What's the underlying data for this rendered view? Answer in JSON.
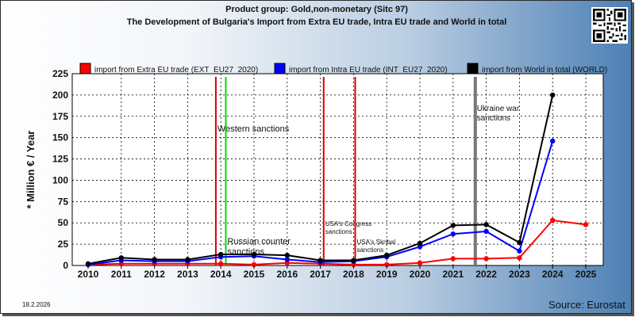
{
  "page": {
    "title_line1": "Product group: Gold,non-monetary (Sitc 97)",
    "title_line2": "The Development of Bulgaria's Import from Extra EU trade, Intra EU trade and World in total",
    "date": "18.2.2026",
    "source": "Source: Eurostat"
  },
  "colors": {
    "extra_eu": "#ff0000",
    "intra_eu": "#0000ff",
    "world": "#000000",
    "sanction_red": "#dd0000",
    "sanction_green": "#00dd00",
    "sanction_gray": "#777777"
  },
  "chart_data": {
    "type": "line",
    "ylabel": "* Million € / Year",
    "xlabel": "",
    "ylim": [
      0,
      225
    ],
    "yticks": [
      0,
      25,
      50,
      75,
      100,
      125,
      150,
      175,
      200,
      225
    ],
    "categories": [
      "2010",
      "2011",
      "2012",
      "2013",
      "2014",
      "2015",
      "2016",
      "2017",
      "2018",
      "2019",
      "2020",
      "2021",
      "2022",
      "2023",
      "2024",
      "2025"
    ],
    "grid": true,
    "legend_position": "top",
    "series": [
      {
        "key": "extra_eu",
        "name": "import from Extra EU trade (EXT_EU27_2020)",
        "values": [
          1,
          2,
          2,
          2,
          2,
          1,
          3,
          2,
          1,
          1,
          3,
          8,
          8,
          9,
          53,
          48
        ]
      },
      {
        "key": "intra_eu",
        "name": "import from Intra EU trade (INT_EU27_2020)",
        "values": [
          1,
          6,
          5,
          5,
          10,
          11,
          7,
          4,
          5,
          10,
          22,
          37,
          40,
          17,
          146,
          null
        ]
      },
      {
        "key": "world",
        "name": "import from World in total (WORLD)",
        "values": [
          2,
          9,
          7,
          7,
          13,
          13,
          12,
          6,
          6,
          12,
          26,
          47,
          48,
          27,
          200,
          null
        ]
      }
    ],
    "events": [
      {
        "x": 2013.85,
        "color_key": "sanction_red",
        "label": "Western sanctions",
        "label_pos": "upper"
      },
      {
        "x": 2014.15,
        "color_key": "sanction_green",
        "label": "Russian counter sanctions",
        "label_pos": "lower"
      },
      {
        "x": 2017.1,
        "color_key": "sanction_red",
        "label": "USA's Congress sanctions",
        "label_pos": "middle"
      },
      {
        "x": 2018.05,
        "color_key": "sanction_red",
        "label": "USA's Skribal sanctions",
        "label_pos": "low"
      },
      {
        "x": 2021.67,
        "color_key": "sanction_gray",
        "label": "Ukraine war sanctions",
        "label_pos": "top"
      }
    ]
  }
}
